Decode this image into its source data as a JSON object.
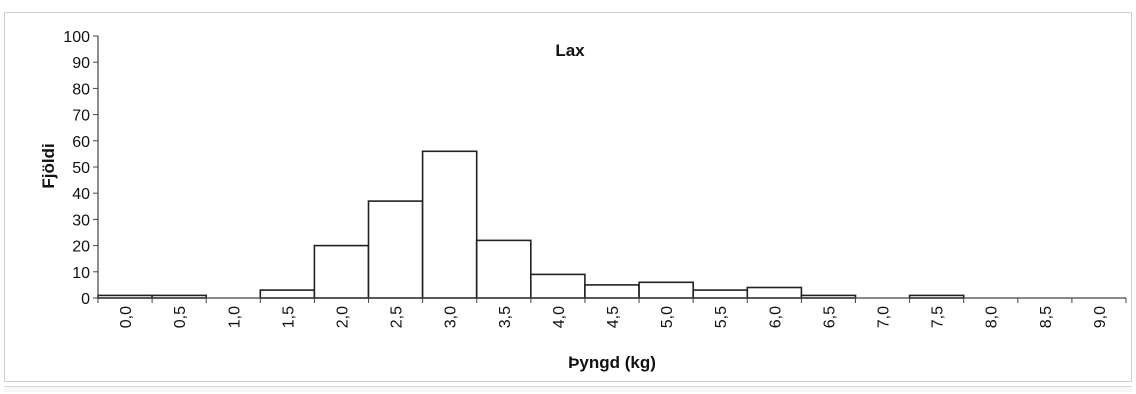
{
  "chart_data": {
    "type": "bar",
    "title": "Lax",
    "xlabel": "Þyngd (kg)",
    "ylabel": "Fjöldi",
    "ylim": [
      0,
      100
    ],
    "yticks": [
      "0",
      "10",
      "20",
      "30",
      "40",
      "50",
      "60",
      "70",
      "80",
      "90",
      "100"
    ],
    "categories": [
      "0,0",
      "0,5",
      "1,0",
      "1,5",
      "2,0",
      "2,5",
      "3,0",
      "3,5",
      "4,0",
      "4,5",
      "5,0",
      "5,5",
      "6,0",
      "6,5",
      "7,0",
      "7,5",
      "8,0",
      "8,5",
      "9,0"
    ],
    "values": [
      1,
      1,
      0,
      3,
      20,
      37,
      56,
      22,
      9,
      5,
      6,
      3,
      4,
      1,
      0,
      1,
      0,
      0,
      0
    ],
    "grid": false,
    "legend": "none"
  },
  "colors": {
    "bar_fill": "#ffffff",
    "bar_stroke": "#222222",
    "axis": "#444444",
    "text": "#111111"
  }
}
